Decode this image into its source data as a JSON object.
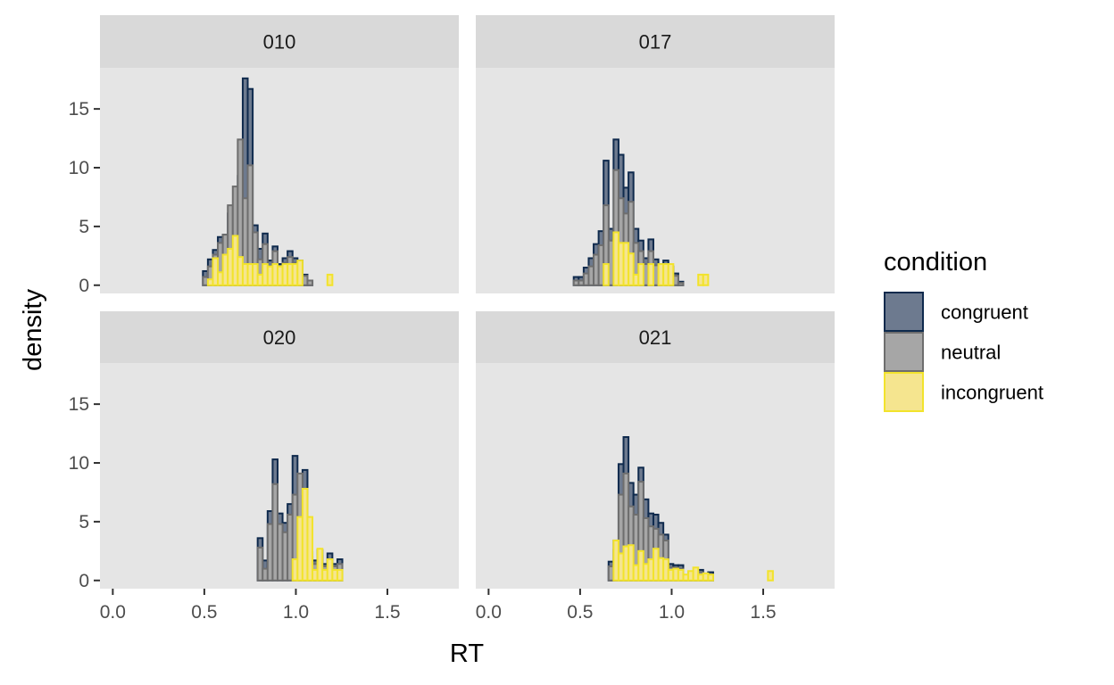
{
  "chart_data": {
    "type": "histogram",
    "xlabel": "RT",
    "ylabel": "density",
    "xlim": [
      -0.07,
      1.89
    ],
    "ylim": [
      -0.7,
      18.5
    ],
    "x_ticks": [
      0.0,
      0.5,
      1.0,
      1.5
    ],
    "x_tick_labels": [
      "0.0",
      "0.5",
      "1.0",
      "1.5"
    ],
    "y_ticks": [
      0,
      5,
      10,
      15
    ],
    "y_tick_labels": [
      "0",
      "5",
      "10",
      "15"
    ],
    "bin_start": 0.465,
    "bin_width": 0.0272,
    "legend": {
      "title": "condition",
      "position": "right",
      "items": [
        {
          "key": "congruent",
          "label": "congruent",
          "fill": "#6d7a8f",
          "stroke": "#0f2a4d"
        },
        {
          "key": "neutral",
          "label": "neutral",
          "fill": "#a6a6a6",
          "stroke": "#6e6e6e"
        },
        {
          "key": "incongruent",
          "label": "incongruent",
          "fill": "#f5e58f",
          "stroke": "#f2e32c"
        }
      ]
    },
    "panels": [
      {
        "label": "010",
        "series": {
          "congruent": [
            0,
            1.2,
            2.2,
            3,
            4.1,
            4.3,
            6.1,
            5.2,
            9.3,
            17.6,
            16.7,
            5.1,
            3.1,
            4.4,
            2.1,
            3.3,
            1.8,
            2.3,
            2.9,
            2.3,
            2.1,
            0.9,
            0.4,
            0,
            0,
            0,
            0,
            0,
            0,
            0,
            0,
            0,
            0,
            0,
            0,
            0,
            0,
            0,
            0,
            0,
            0
          ],
          "neutral": [
            0,
            0.7,
            1.6,
            2.6,
            3.6,
            4.3,
            6.8,
            8.4,
            12.4,
            7.4,
            10.2,
            4.5,
            2.2,
            3.5,
            1.6,
            2.9,
            1.4,
            1.9,
            2.4,
            1.9,
            1.8,
            0.8,
            0.4,
            0,
            0,
            0,
            0,
            0,
            0,
            0,
            0,
            0,
            0,
            0,
            0,
            0,
            0,
            0,
            0,
            0,
            0
          ],
          "incongruent": [
            0,
            0,
            0.5,
            2.3,
            1.1,
            2.6,
            3.1,
            4.2,
            2.4,
            1.8,
            1.8,
            1.8,
            0.9,
            1.8,
            1.6,
            1.8,
            1.6,
            1.8,
            1.8,
            1.8,
            2.1,
            0,
            0,
            0,
            0,
            0,
            0.9,
            0,
            0,
            0,
            0,
            0,
            0,
            0,
            0,
            0,
            0,
            0,
            0,
            0,
            0
          ]
        }
      },
      {
        "label": "017",
        "series": {
          "congruent": [
            0.7,
            0.7,
            1.5,
            2.3,
            3.5,
            4.6,
            10.6,
            4.8,
            12.4,
            11.1,
            8.3,
            9.6,
            4.8,
            3.8,
            2.3,
            3.9,
            2.2,
            1.8,
            2.1,
            1.6,
            1.0,
            0.3,
            0,
            0,
            0,
            0,
            0,
            0,
            0,
            0,
            0,
            0,
            0,
            0,
            0,
            0,
            0,
            0,
            0,
            0,
            0
          ],
          "neutral": [
            0.4,
            0.4,
            1.0,
            1.6,
            2.6,
            3.4,
            6.8,
            3.8,
            9.8,
            7.4,
            6.1,
            7.1,
            3.6,
            2.9,
            1.8,
            2.9,
            1.7,
            1.4,
            1.6,
            1.3,
            0.8,
            0.2,
            0,
            0,
            0,
            0,
            0,
            0,
            0,
            0,
            0,
            0,
            0,
            0,
            0,
            0,
            0,
            0,
            0,
            0,
            0
          ],
          "incongruent": [
            0,
            0,
            0,
            0,
            0,
            0,
            1.8,
            0,
            4.5,
            3.6,
            3.6,
            2.7,
            0.9,
            1.8,
            0,
            1.8,
            0,
            1.8,
            1.8,
            1.8,
            0,
            0,
            0,
            0,
            0,
            0.9,
            0.9,
            0,
            0,
            0,
            0,
            0,
            0,
            0,
            0,
            0,
            0,
            0,
            0,
            0,
            0
          ]
        }
      },
      {
        "label": "020",
        "series": {
          "congruent": [
            0,
            0,
            0,
            0,
            0,
            0,
            0,
            0,
            0,
            0,
            0,
            0,
            3.6,
            1.7,
            5.9,
            10.3,
            5.7,
            4.9,
            6.5,
            10.6,
            7.1,
            9.4,
            2.4,
            1.7,
            2.6,
            1.4,
            2.3,
            1.4,
            1.8,
            0,
            0,
            0,
            0,
            0,
            0,
            0,
            0,
            0,
            0,
            0,
            0
          ],
          "neutral": [
            0,
            0,
            0,
            0,
            0,
            0,
            0,
            0,
            0,
            0,
            0,
            0,
            2.8,
            1.0,
            4.8,
            8.2,
            4.8,
            4.1,
            5.6,
            7.3,
            9.1,
            7.2,
            2.0,
            1.4,
            2.1,
            1.2,
            1.8,
            1.2,
            1.4,
            0,
            0,
            0,
            0,
            0,
            0,
            0,
            0,
            0,
            0,
            0,
            0
          ],
          "incongruent": [
            0,
            0,
            0,
            0,
            0,
            0,
            0,
            0,
            0,
            0,
            0,
            0,
            0,
            0,
            0,
            0,
            0,
            0,
            0,
            1.8,
            5.4,
            7.8,
            5.4,
            0.9,
            2.7,
            0.9,
            1.8,
            0.9,
            0.9,
            0,
            0,
            0,
            0,
            0,
            0,
            0,
            0,
            0,
            0,
            0,
            0
          ]
        }
      },
      {
        "label": "021",
        "series": {
          "congruent": [
            0,
            0,
            0,
            0,
            0,
            0,
            0,
            1.6,
            3.4,
            9.9,
            12.2,
            8.3,
            7.3,
            9.6,
            6.9,
            5.7,
            5.6,
            4.9,
            3.9,
            1.4,
            1.3,
            1.3,
            0.4,
            0.7,
            0.4,
            0.9,
            0.3,
            0.7,
            0,
            0,
            0,
            0,
            0,
            0,
            0,
            0,
            0,
            0,
            0,
            0,
            0
          ],
          "neutral": [
            0,
            0,
            0,
            0,
            0,
            0,
            0,
            1.2,
            2.6,
            7.3,
            9.1,
            6.3,
            5.6,
            8.4,
            5.3,
            4.6,
            4.4,
            3.9,
            3.4,
            1.1,
            1.1,
            1.0,
            0.3,
            0.5,
            0.3,
            0.7,
            0.2,
            0.5,
            0,
            0,
            0,
            0,
            0,
            0,
            0,
            0,
            0,
            0,
            0,
            0,
            0
          ],
          "incongruent": [
            0,
            0,
            0,
            0,
            0,
            0,
            0,
            0,
            3.4,
            2.3,
            2.9,
            3.0,
            1.3,
            2.5,
            1.4,
            1.8,
            2.7,
            1.9,
            1.8,
            0.9,
            1.0,
            0.9,
            0.5,
            0.8,
            1.1,
            0.5,
            0.6,
            0.5,
            0,
            0,
            0,
            0,
            0,
            0,
            0,
            0,
            0,
            0,
            0,
            0.8,
            0
          ]
        }
      }
    ]
  }
}
